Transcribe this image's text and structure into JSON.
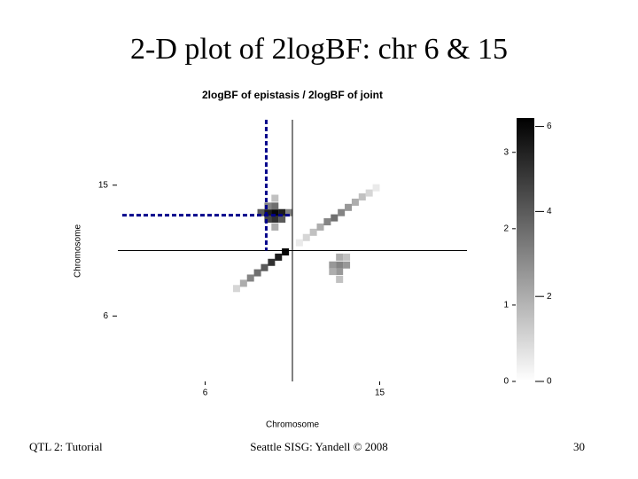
{
  "slide": {
    "title": "2-D plot of 2logBF: chr 6 & 15",
    "footer_left": "QTL 2: Tutorial",
    "footer_center": "Seattle SISG: Yandell © 2008",
    "footer_right": "30"
  },
  "chart_data": {
    "type": "heatmap",
    "title": "2logBF of epistasis / 2logBF of joint",
    "x_label": "Chromosome",
    "y_label": "Chromosome",
    "xlim": [
      0,
      2
    ],
    "ylim": [
      0,
      2
    ],
    "xticks": [
      {
        "value": 0.5,
        "label": "6"
      },
      {
        "value": 1.5,
        "label": "15"
      }
    ],
    "yticks": [
      {
        "value": 0.5,
        "label": "6"
      },
      {
        "value": 1.5,
        "label": "15"
      }
    ],
    "boundaries": {
      "x": 1,
      "y": 1
    },
    "peak": {
      "x": 0.85,
      "y": 1.27,
      "color": "#00008b"
    },
    "cells": [
      [
        0.68,
        0.71,
        1
      ],
      [
        0.72,
        0.75,
        2
      ],
      [
        0.76,
        0.79,
        3
      ],
      [
        0.8,
        0.83,
        3.5
      ],
      [
        0.84,
        0.87,
        4
      ],
      [
        0.88,
        0.91,
        5
      ],
      [
        0.92,
        0.95,
        5.5
      ],
      [
        0.96,
        0.99,
        6
      ],
      [
        1.04,
        1.06,
        0.5
      ],
      [
        1.08,
        1.1,
        1
      ],
      [
        1.12,
        1.14,
        1.5
      ],
      [
        1.16,
        1.18,
        2
      ],
      [
        1.2,
        1.22,
        3
      ],
      [
        1.24,
        1.25,
        3.5
      ],
      [
        1.28,
        1.29,
        3
      ],
      [
        1.32,
        1.33,
        2.5
      ],
      [
        1.36,
        1.37,
        2
      ],
      [
        1.4,
        1.41,
        1.5
      ],
      [
        1.44,
        1.44,
        1
      ],
      [
        1.48,
        1.48,
        0.5
      ],
      [
        0.82,
        1.29,
        4
      ],
      [
        0.86,
        1.29,
        5.5
      ],
      [
        0.9,
        1.29,
        6
      ],
      [
        0.94,
        1.29,
        5.5
      ],
      [
        0.86,
        1.24,
        4.5
      ],
      [
        0.9,
        1.24,
        5
      ],
      [
        0.94,
        1.24,
        4
      ],
      [
        0.86,
        1.34,
        3
      ],
      [
        0.9,
        1.34,
        3.5
      ],
      [
        0.9,
        1.4,
        1.5
      ],
      [
        0.9,
        1.18,
        2
      ],
      [
        0.98,
        1.29,
        3
      ],
      [
        1.23,
        0.89,
        2.5
      ],
      [
        1.27,
        0.89,
        3
      ],
      [
        1.31,
        0.89,
        2.5
      ],
      [
        1.27,
        0.84,
        2.5
      ],
      [
        1.27,
        0.95,
        2
      ],
      [
        1.23,
        0.84,
        2
      ],
      [
        1.31,
        0.95,
        1.5
      ],
      [
        1.27,
        0.78,
        1.5
      ]
    ],
    "colorbar": {
      "lim_left": [
        0,
        3.45
      ],
      "ticks_left": [
        0,
        1,
        2,
        3
      ],
      "lim_right": [
        0,
        6.2
      ],
      "ticks_right": [
        0,
        2,
        4,
        6
      ]
    }
  }
}
